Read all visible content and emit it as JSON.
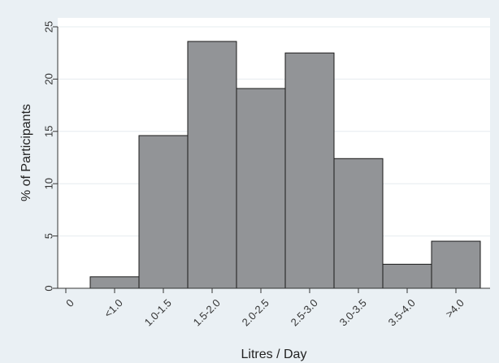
{
  "chart_data": {
    "type": "bar",
    "title": "",
    "xlabel": "Litres / Day",
    "ylabel": "% of Participants",
    "categories": [
      "<1.0",
      "1.0-1.5",
      "1.5-2.0",
      "2.0-2.5",
      "2.5-3.0",
      "3.0-3.5",
      "3.5-4.0",
      ">4.0"
    ],
    "x_tick_labels": [
      "0",
      "<1.0",
      "1.0-1.5",
      "1.5-2.0",
      "2.0-2.5",
      "2.5-3.0",
      "3.0-3.5",
      "3.5-4.0",
      ">4.0"
    ],
    "values": [
      1.1,
      14.6,
      23.6,
      19.1,
      22.5,
      12.4,
      2.3,
      4.5
    ],
    "ylim": [
      0,
      25
    ],
    "yticks": [
      0,
      5,
      10,
      15,
      20,
      25
    ],
    "grid": true,
    "legend": "none",
    "colors": {
      "background": "#eaf0f4",
      "plot_area": "#ffffff",
      "bar_fill": "#929497",
      "bar_stroke": "#1a1a1a",
      "grid": "#e6ecef"
    }
  }
}
